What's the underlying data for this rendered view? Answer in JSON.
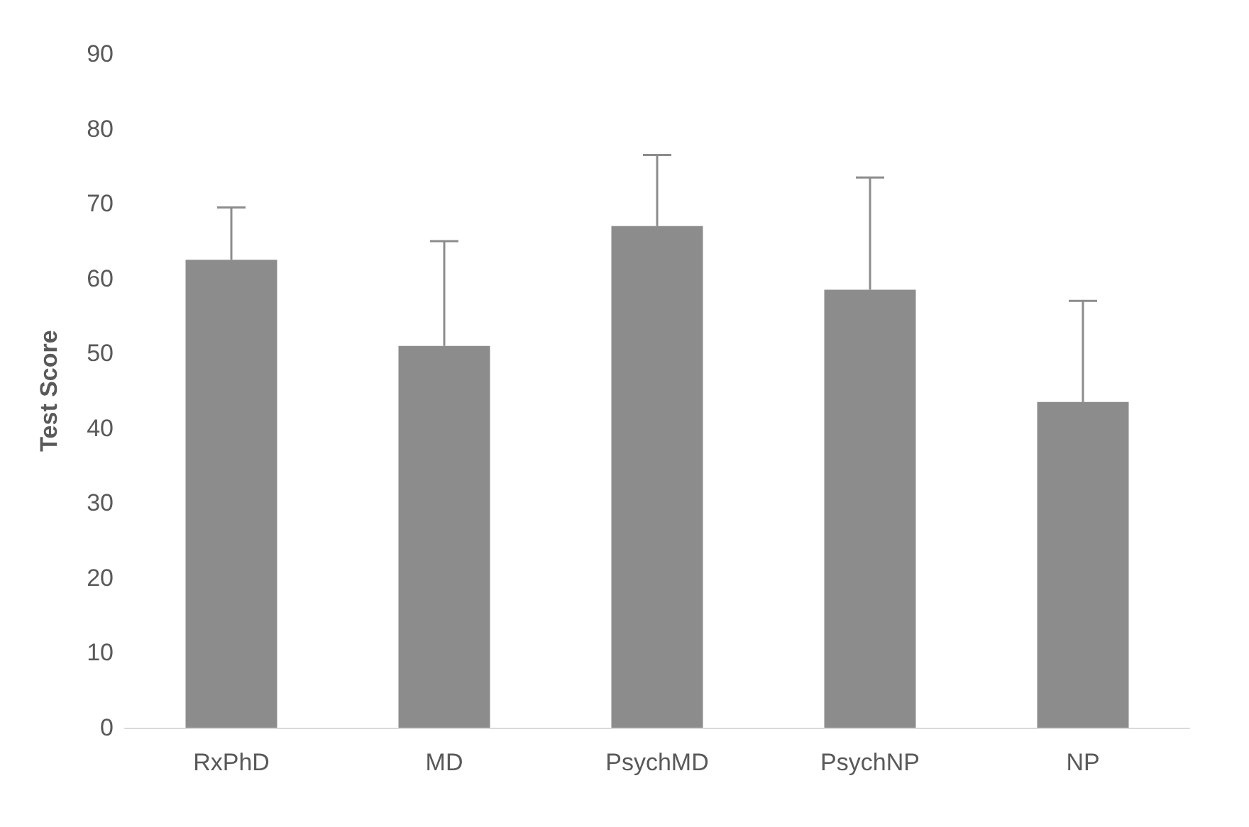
{
  "chart_data": {
    "type": "bar",
    "ylabel": "Test Score",
    "categories": [
      "RxPhD",
      "MD",
      "PsychMD",
      "PsychNP",
      "NP"
    ],
    "values": [
      62.5,
      51,
      67,
      58.5,
      43.5
    ],
    "color": "#8c8c8c",
    "errors": [
      [
        62.5,
        69.5
      ],
      [
        51,
        65
      ],
      [
        67,
        76.5
      ],
      [
        58.5,
        73.5
      ],
      [
        43.5,
        57
      ]
    ],
    "ylim": [
      0,
      90
    ],
    "yticks": [
      0,
      10,
      20,
      30,
      40,
      50,
      60,
      70,
      80,
      90
    ],
    "grid": false
  }
}
